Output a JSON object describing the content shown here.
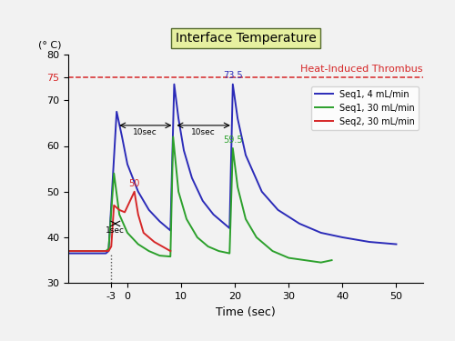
{
  "chart_data": {
    "type": "line",
    "title": "Interface Temperature",
    "y_label": "(° C)",
    "x_label": "Time (sec)",
    "xlim": [
      -11,
      55
    ],
    "xticks": [
      -3,
      0,
      10,
      20,
      30,
      40,
      50
    ],
    "ylim": [
      30,
      80
    ],
    "yticks": [
      30,
      40,
      50,
      60,
      70,
      75,
      80
    ],
    "grid": false,
    "legend": "upper right",
    "threshold": {
      "value": 75,
      "label": "Heat-Induced Thrombus",
      "color": "#d62728"
    },
    "vline": {
      "x": -3,
      "y": 36.5
    },
    "series": [
      {
        "name": "Seq1, 4 mL/min",
        "color": "#2b2bb8",
        "x": [
          -11,
          -4,
          -3.5,
          -2,
          -1,
          0,
          2,
          4,
          6,
          8,
          8.7,
          9.5,
          10.5,
          12,
          14,
          16,
          18,
          19,
          19.6,
          20.5,
          22,
          25,
          28,
          32,
          36,
          40,
          45,
          50
        ],
        "values": [
          36.5,
          36.5,
          37,
          67.5,
          62,
          56,
          50,
          46,
          43.5,
          41.5,
          73.5,
          66,
          59,
          53,
          48,
          45,
          43,
          42,
          73.5,
          66,
          58,
          50,
          46,
          43,
          41,
          40,
          39,
          38.5
        ]
      },
      {
        "name": "Seq1, 30 mL/min",
        "color": "#2ca02c",
        "x": [
          -11,
          -4,
          -3.5,
          -2.5,
          -1.5,
          0,
          2,
          4,
          6,
          8,
          8.5,
          9.5,
          11,
          13,
          15,
          17,
          19,
          19.6,
          20.5,
          22,
          24,
          27,
          30,
          33,
          36,
          38
        ],
        "values": [
          37,
          37,
          37.5,
          54,
          45,
          41,
          38.5,
          37,
          36,
          35.8,
          62,
          50,
          44,
          40,
          38,
          37,
          36.5,
          59.5,
          51,
          44,
          40,
          37,
          35.5,
          35,
          34.5,
          35
        ]
      },
      {
        "name": "Seq2, 30 mL/min",
        "color": "#d62728",
        "x": [
          -11,
          -3.5,
          -3,
          -2.5,
          -1.5,
          -0.5,
          0.5,
          1.3,
          2,
          3,
          5,
          8
        ],
        "values": [
          37,
          37,
          38,
          47,
          46,
          45.5,
          48,
          50,
          45,
          41,
          39,
          37
        ]
      }
    ],
    "annotations": [
      {
        "text": "73.5",
        "x": 19.6,
        "y": 73.5,
        "color": "#2b2bb8"
      },
      {
        "text": "59.5",
        "x": 19.6,
        "y": 59.5,
        "color": "#2ca02c"
      },
      {
        "text": "50",
        "x": 1.3,
        "y": 50,
        "color": "#d62728"
      }
    ],
    "spans": [
      {
        "text": "10sec",
        "x_start": -2,
        "x_end": 8.7,
        "y": 64.5
      },
      {
        "text": "10sec",
        "x_start": 8.7,
        "x_end": 19.6,
        "y": 64.5
      },
      {
        "text": "1sec",
        "x_start": -3,
        "x_end": -1.5,
        "y": 43
      }
    ]
  }
}
